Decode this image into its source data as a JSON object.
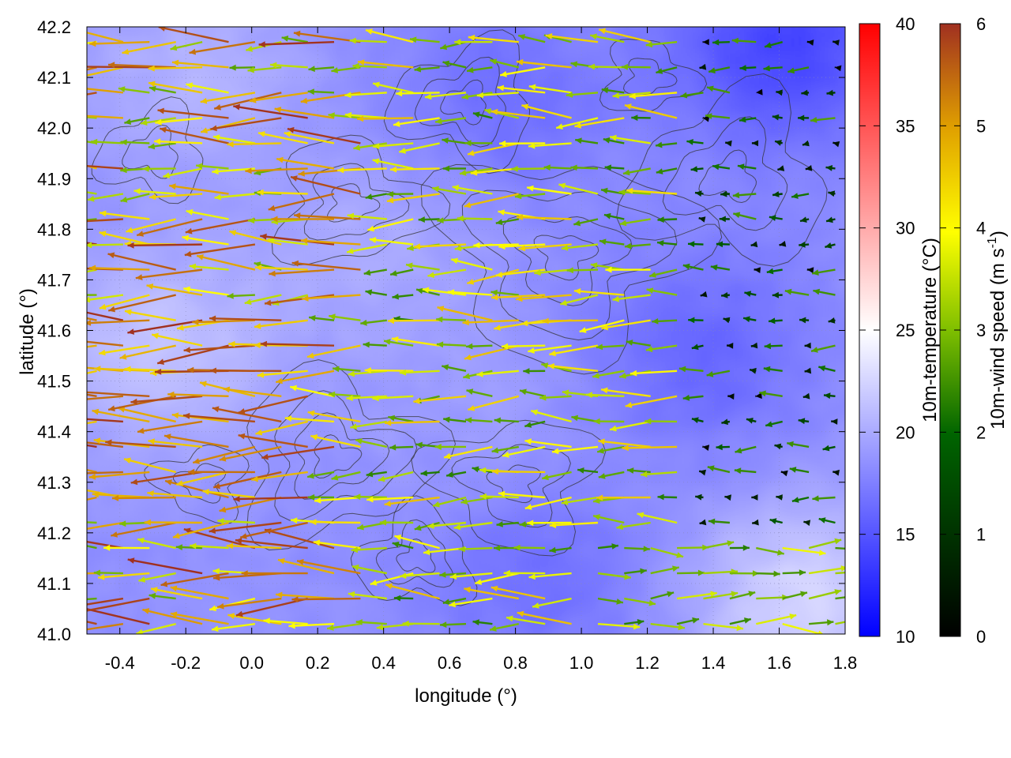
{
  "chart_data": {
    "type": "heatmap",
    "title": "",
    "xlabel": "longitude (°)",
    "ylabel": "latitude (°)",
    "xlim": [
      -0.5,
      1.8
    ],
    "ylim": [
      41.0,
      42.2
    ],
    "xticks": [
      -0.4,
      -0.2,
      0.0,
      0.2,
      0.4,
      0.6,
      0.8,
      1.0,
      1.2,
      1.4,
      1.6,
      1.8
    ],
    "xtick_labels": [
      "-0.4",
      "-0.2",
      "0.0",
      "0.2",
      "0.4",
      "0.6",
      "0.8",
      "1.0",
      "1.2",
      "1.4",
      "1.6",
      "1.8"
    ],
    "yticks": [
      41.0,
      41.1,
      41.2,
      41.3,
      41.4,
      41.5,
      41.6,
      41.7,
      41.8,
      41.9,
      42.0,
      42.1,
      42.2
    ],
    "ytick_labels": [
      "41.0",
      "41.1",
      "41.2",
      "41.3",
      "41.4",
      "41.5",
      "41.6",
      "41.7",
      "41.8",
      "41.9",
      "42.0",
      "42.1",
      "42.2"
    ],
    "grid": true,
    "overlays": [
      "topography contours",
      "10m-wind vectors"
    ],
    "temperature_colorbar": {
      "label": "10m-temperature (°C)",
      "range": [
        10,
        40
      ],
      "ticks": [
        10,
        15,
        20,
        25,
        30,
        35,
        40
      ],
      "tick_labels": [
        "10",
        "15",
        "20",
        "25",
        "30",
        "35",
        "40"
      ],
      "colors": [
        "#0000ff",
        "#ffffff",
        "#ff0000"
      ]
    },
    "wind_colorbar": {
      "label_main": "10m-wind speed (m s",
      "label_sup": "-1",
      "label_end": ")",
      "range": [
        0,
        6
      ],
      "ticks": [
        0,
        1,
        2,
        3,
        4,
        5,
        6
      ],
      "tick_labels": [
        "0",
        "1",
        "2",
        "3",
        "4",
        "5",
        "6"
      ],
      "colors": [
        "#000000",
        "#006400",
        "#7fbf00",
        "#ffff00",
        "#e0a000",
        "#a03020"
      ]
    },
    "temperature_field": {
      "base": 18.5,
      "regions": [
        {
          "lon": -0.3,
          "lat": 41.55,
          "delta": 3.0
        },
        {
          "lon": -0.2,
          "lat": 42.1,
          "delta": 2.0
        },
        {
          "lon": 1.6,
          "lat": 42.15,
          "delta": -4.5
        },
        {
          "lon": 1.35,
          "lat": 41.55,
          "delta": -2.5
        },
        {
          "lon": 0.75,
          "lat": 42.05,
          "delta": -2.0
        },
        {
          "lon": 0.85,
          "lat": 41.1,
          "delta": -2.0
        },
        {
          "lon": 1.65,
          "lat": 41.05,
          "delta": 4.0
        },
        {
          "lon": 0.35,
          "lat": 41.75,
          "delta": 1.5
        },
        {
          "lon": 0.7,
          "lat": 41.4,
          "delta": 0.8
        }
      ]
    },
    "wind_field": {
      "grid_spacing_lon": 0.05,
      "grid_spacing_lat": 0.025,
      "regimes": [
        {
          "name": "west strong easterly",
          "lon_max": 0.4,
          "direction_deg": 180,
          "speed_range": [
            2,
            6
          ]
        },
        {
          "name": "central easterly",
          "lon_min": 0.4,
          "lon_max": 1.3,
          "direction_deg": 180,
          "speed_range": [
            1.5,
            4.5
          ]
        },
        {
          "name": "east calm",
          "lon_min": 1.3,
          "lat_min": 41.2,
          "direction_deg": 180,
          "speed_range": [
            0,
            2
          ]
        },
        {
          "name": "southeast westerly",
          "lon_min": 1.0,
          "lat_max": 41.2,
          "direction_deg": 0,
          "speed_range": [
            1.5,
            3.5
          ]
        }
      ]
    }
  }
}
